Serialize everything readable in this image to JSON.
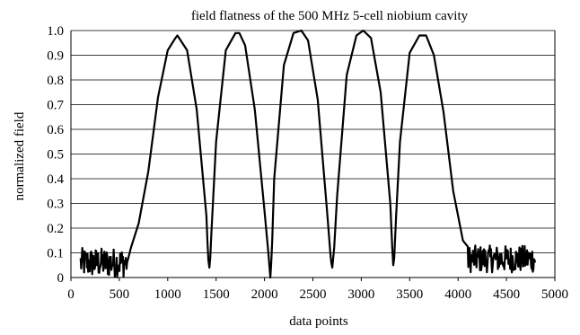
{
  "chart_data": {
    "type": "line",
    "title": "field flatness of the 500 MHz 5-cell niobium cavity",
    "xlabel": "data points",
    "ylabel": "normalized field",
    "xlim": [
      0,
      5000
    ],
    "ylim": [
      0,
      1.0
    ],
    "x_ticks": [
      "0",
      "500",
      "1000",
      "1500",
      "2000",
      "2500",
      "3000",
      "3500",
      "4000",
      "4500",
      "5000"
    ],
    "y_ticks": [
      "0",
      "0.1",
      "0.2",
      "0.3",
      "0.4",
      "0.5",
      "0.6",
      "0.7",
      "0.8",
      "0.9",
      "1.0"
    ],
    "grid": "horizontal",
    "legend": "none",
    "series": [
      {
        "color": "#000000",
        "noise_segments": [
          {
            "x_start": 100,
            "x_end": 580,
            "y_min": 0.0,
            "y_max": 0.12
          },
          {
            "x_start": 4100,
            "x_end": 4800,
            "y_min": 0.02,
            "y_max": 0.13
          }
        ],
        "x": [
          100,
          300,
          550,
          620,
          700,
          800,
          900,
          1000,
          1080,
          1100,
          1200,
          1300,
          1400,
          1410,
          1420,
          1430,
          1440,
          1450,
          1500,
          1600,
          1700,
          1740,
          1800,
          1900,
          2000,
          2040,
          2050,
          2060,
          2070,
          2080,
          2100,
          2200,
          2300,
          2380,
          2450,
          2550,
          2650,
          2680,
          2690,
          2700,
          2720,
          2750,
          2850,
          2950,
          3020,
          3100,
          3200,
          3300,
          3320,
          3330,
          3340,
          3360,
          3400,
          3500,
          3600,
          3670,
          3750,
          3850,
          3950,
          4050,
          4150,
          4300,
          4500,
          4800
        ],
        "y": [
          0.05,
          0.06,
          0.08,
          0.12,
          0.22,
          0.43,
          0.73,
          0.92,
          0.97,
          0.98,
          0.92,
          0.68,
          0.25,
          0.15,
          0.07,
          0.04,
          0.08,
          0.17,
          0.55,
          0.92,
          0.99,
          0.99,
          0.94,
          0.68,
          0.27,
          0.1,
          0.05,
          0.0,
          0.06,
          0.15,
          0.4,
          0.86,
          0.99,
          1.0,
          0.96,
          0.72,
          0.25,
          0.1,
          0.06,
          0.04,
          0.12,
          0.33,
          0.82,
          0.98,
          1.0,
          0.97,
          0.75,
          0.3,
          0.12,
          0.05,
          0.08,
          0.25,
          0.55,
          0.91,
          0.98,
          0.98,
          0.9,
          0.67,
          0.35,
          0.15,
          0.09,
          0.08,
          0.08,
          0.07
        ]
      }
    ]
  }
}
